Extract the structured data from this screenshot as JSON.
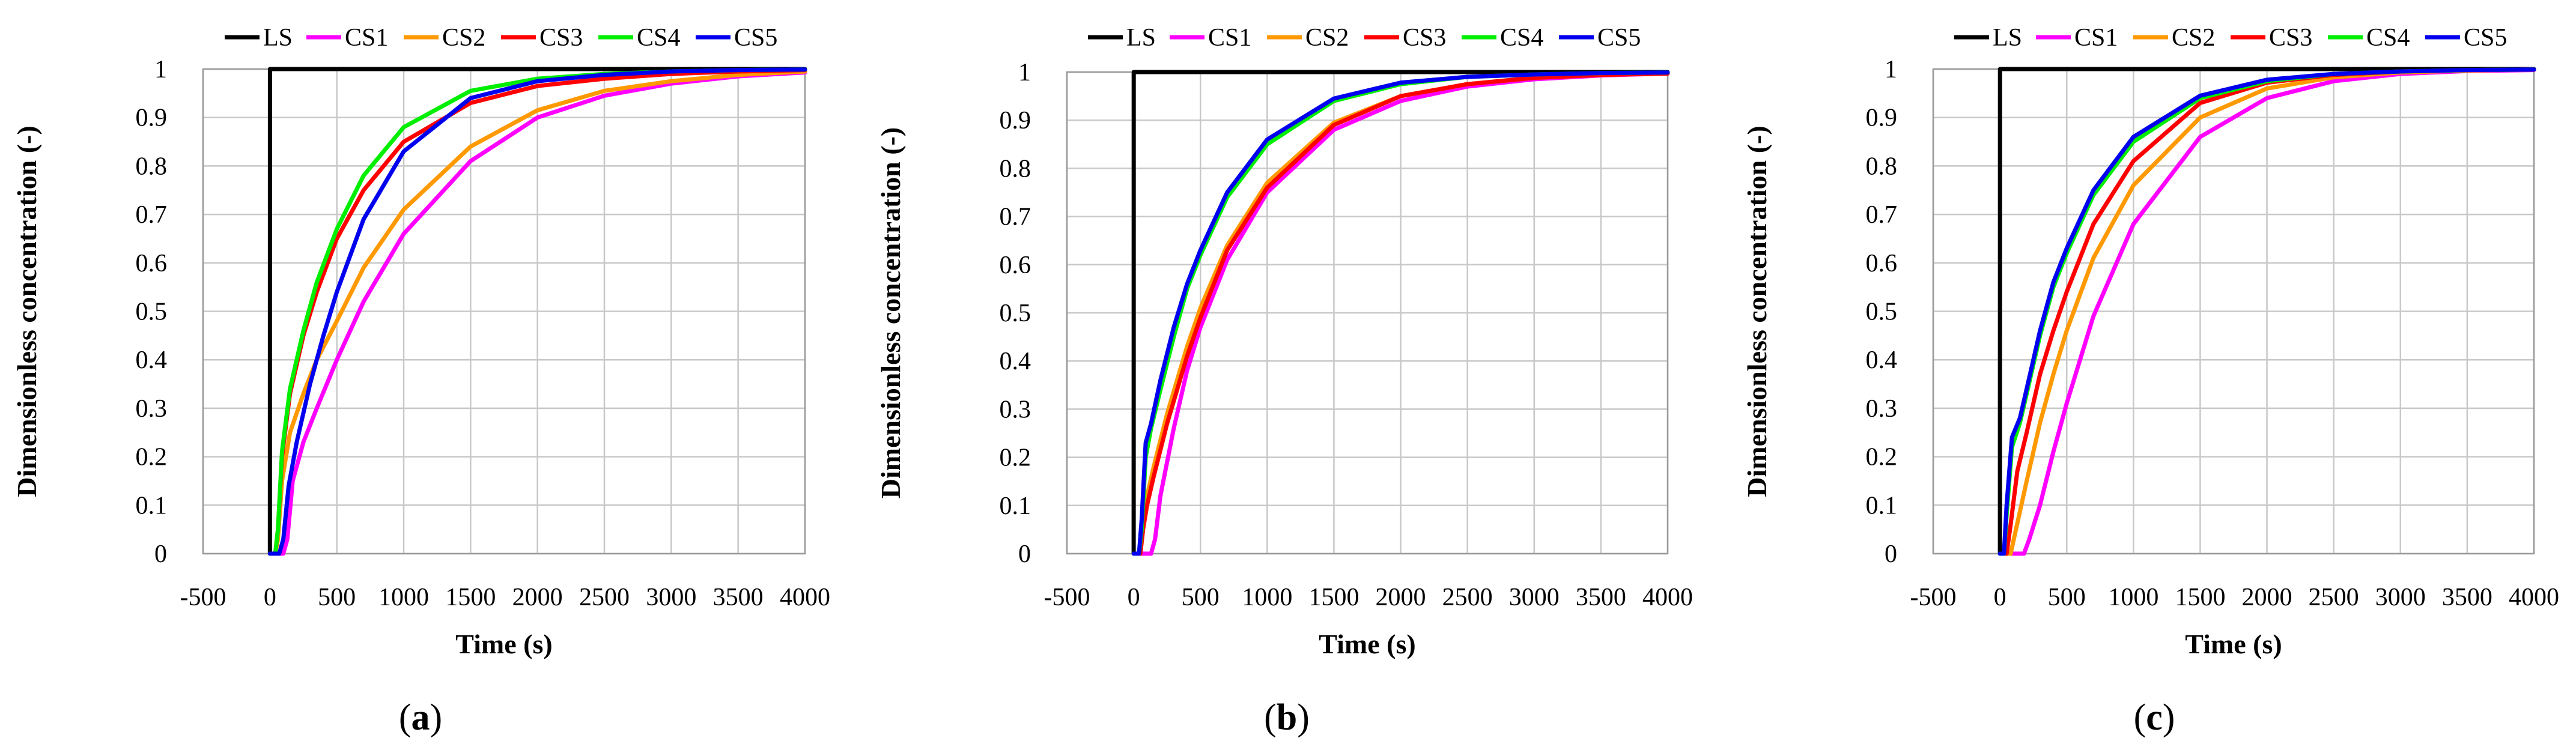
{
  "figure": {
    "captions": [
      {
        "open": "(",
        "letter": "a",
        "close": ")"
      },
      {
        "open": "(",
        "letter": "b",
        "close": ")"
      },
      {
        "open": "(",
        "letter": "c",
        "close": ")"
      }
    ]
  },
  "chart_data": [
    {
      "type": "line",
      "panel": "a",
      "title": "",
      "xlabel": "Time (s)",
      "ylabel": "Dimensionless concentration (-)",
      "xlim": [
        -500,
        4000
      ],
      "ylim": [
        0,
        1
      ],
      "xticks": [
        -500,
        0,
        500,
        1000,
        1500,
        2000,
        2500,
        3000,
        3500,
        4000
      ],
      "yticks": [
        0,
        0.1,
        0.2,
        0.3,
        0.4,
        0.5,
        0.6,
        0.7,
        0.8,
        0.9,
        1
      ],
      "grid": true,
      "legend": "top",
      "series": [
        {
          "name": "LS",
          "color": "#000000",
          "x": [
            0,
            0,
            0.5,
            4000
          ],
          "y": [
            0,
            0,
            1,
            1
          ]
        },
        {
          "name": "CS1",
          "color": "#ff00ff",
          "x": [
            0,
            100,
            130,
            170,
            250,
            350,
            500,
            700,
            1000,
            1500,
            2000,
            2500,
            3000,
            3500,
            4000
          ],
          "y": [
            0,
            0,
            0.03,
            0.15,
            0.23,
            0.3,
            0.4,
            0.52,
            0.66,
            0.81,
            0.9,
            0.945,
            0.97,
            0.985,
            0.993
          ]
        },
        {
          "name": "CS2",
          "color": "#ff9900",
          "x": [
            0,
            40,
            60,
            90,
            150,
            250,
            350,
            500,
            700,
            1000,
            1500,
            2000,
            2500,
            3000,
            3500,
            4000
          ],
          "y": [
            0,
            0,
            0.03,
            0.15,
            0.25,
            0.33,
            0.4,
            0.48,
            0.59,
            0.71,
            0.84,
            0.915,
            0.955,
            0.975,
            0.988,
            0.995
          ]
        },
        {
          "name": "CS3",
          "color": "#ff0000",
          "x": [
            0,
            40,
            60,
            90,
            150,
            250,
            350,
            500,
            700,
            1000,
            1500,
            2000,
            2500,
            3000,
            3500,
            4000
          ],
          "y": [
            0,
            0,
            0.05,
            0.2,
            0.33,
            0.45,
            0.54,
            0.65,
            0.75,
            0.85,
            0.93,
            0.965,
            0.98,
            0.99,
            0.995,
            0.998
          ]
        },
        {
          "name": "CS4",
          "color": "#00ee00",
          "x": [
            0,
            40,
            60,
            90,
            150,
            250,
            350,
            500,
            700,
            1000,
            1500,
            2000,
            2500,
            3000,
            3500,
            4000
          ],
          "y": [
            0,
            0,
            0.05,
            0.21,
            0.34,
            0.46,
            0.56,
            0.67,
            0.78,
            0.88,
            0.955,
            0.98,
            0.99,
            0.995,
            0.998,
            0.999
          ]
        },
        {
          "name": "CS5",
          "color": "#0000ee",
          "x": [
            0,
            70,
            100,
            140,
            200,
            300,
            400,
            500,
            700,
            1000,
            1500,
            2000,
            2500,
            3000,
            3500,
            4000
          ],
          "y": [
            0,
            0,
            0.03,
            0.14,
            0.23,
            0.35,
            0.45,
            0.54,
            0.69,
            0.83,
            0.94,
            0.975,
            0.988,
            0.995,
            0.998,
            0.999
          ]
        }
      ]
    },
    {
      "type": "line",
      "panel": "b",
      "title": "",
      "xlabel": "Time (s)",
      "ylabel": "Dimensionless concentration (-)",
      "xlim": [
        -500,
        4000
      ],
      "ylim": [
        0,
        1
      ],
      "xticks": [
        -500,
        0,
        500,
        1000,
        1500,
        2000,
        2500,
        3000,
        3500,
        4000
      ],
      "yticks": [
        0,
        0.1,
        0.2,
        0.3,
        0.4,
        0.5,
        0.6,
        0.7,
        0.8,
        0.9,
        1
      ],
      "grid": true,
      "legend": "top",
      "series": [
        {
          "name": "LS",
          "color": "#000000",
          "x": [
            0,
            0,
            0.5,
            4000
          ],
          "y": [
            0,
            0,
            1,
            1
          ]
        },
        {
          "name": "CS1",
          "color": "#ff00ff",
          "x": [
            0,
            130,
            160,
            200,
            300,
            400,
            500,
            700,
            1000,
            1500,
            2000,
            2500,
            3000,
            3500,
            4000
          ],
          "y": [
            0,
            0,
            0.03,
            0.12,
            0.26,
            0.38,
            0.47,
            0.61,
            0.75,
            0.88,
            0.94,
            0.97,
            0.985,
            0.993,
            0.997
          ]
        },
        {
          "name": "CS2",
          "color": "#ff9900",
          "x": [
            0,
            50,
            70,
            100,
            150,
            250,
            400,
            500,
            700,
            1000,
            1500,
            2000,
            2500,
            3000,
            3500,
            4000
          ],
          "y": [
            0,
            0,
            0.05,
            0.12,
            0.18,
            0.29,
            0.43,
            0.51,
            0.64,
            0.77,
            0.895,
            0.95,
            0.975,
            0.988,
            0.994,
            0.997
          ]
        },
        {
          "name": "CS3",
          "color": "#ff0000",
          "x": [
            0,
            50,
            70,
            100,
            150,
            250,
            400,
            500,
            700,
            1000,
            1500,
            2000,
            2500,
            3000,
            3500,
            4000
          ],
          "y": [
            0,
            0,
            0.05,
            0.1,
            0.16,
            0.27,
            0.41,
            0.49,
            0.63,
            0.76,
            0.89,
            0.95,
            0.975,
            0.988,
            0.994,
            0.997
          ]
        },
        {
          "name": "CS4",
          "color": "#00ee00",
          "x": [
            0,
            40,
            60,
            90,
            130,
            200,
            300,
            400,
            500,
            700,
            1000,
            1500,
            2000,
            2500,
            3000,
            3500,
            4000
          ],
          "y": [
            0,
            0,
            0.05,
            0.2,
            0.26,
            0.34,
            0.45,
            0.55,
            0.62,
            0.74,
            0.85,
            0.94,
            0.975,
            0.99,
            0.995,
            0.998,
            0.999
          ]
        },
        {
          "name": "CS5",
          "color": "#0000ee",
          "x": [
            0,
            40,
            60,
            90,
            130,
            200,
            300,
            400,
            500,
            700,
            1000,
            1500,
            2000,
            2500,
            3000,
            3500,
            4000
          ],
          "y": [
            0,
            0,
            0.07,
            0.23,
            0.27,
            0.36,
            0.47,
            0.56,
            0.63,
            0.75,
            0.86,
            0.945,
            0.978,
            0.99,
            0.995,
            0.998,
            0.999
          ]
        }
      ]
    },
    {
      "type": "line",
      "panel": "c",
      "title": "",
      "xlabel": "Time (s)",
      "ylabel": "Dimensionless concentration (-)",
      "xlim": [
        -500,
        4000
      ],
      "ylim": [
        0,
        1
      ],
      "xticks": [
        -500,
        0,
        500,
        1000,
        1500,
        2000,
        2500,
        3000,
        3500,
        4000
      ],
      "yticks": [
        0,
        0.1,
        0.2,
        0.3,
        0.4,
        0.5,
        0.6,
        0.7,
        0.8,
        0.9,
        1
      ],
      "grid": true,
      "legend": "top",
      "series": [
        {
          "name": "LS",
          "color": "#000000",
          "x": [
            0,
            0,
            0.5,
            4000
          ],
          "y": [
            0,
            0,
            1,
            1
          ]
        },
        {
          "name": "CS1",
          "color": "#ff00ff",
          "x": [
            0,
            180,
            220,
            300,
            400,
            500,
            700,
            1000,
            1500,
            2000,
            2500,
            3000,
            3500,
            4000
          ],
          "y": [
            0,
            0,
            0.03,
            0.1,
            0.21,
            0.31,
            0.49,
            0.68,
            0.86,
            0.94,
            0.975,
            0.99,
            0.996,
            0.998
          ]
        },
        {
          "name": "CS2",
          "color": "#ff9900",
          "x": [
            0,
            80,
            120,
            200,
            300,
            400,
            500,
            700,
            1000,
            1500,
            2000,
            2500,
            3000,
            3500,
            4000
          ],
          "y": [
            0,
            0,
            0.05,
            0.15,
            0.27,
            0.37,
            0.46,
            0.61,
            0.76,
            0.9,
            0.96,
            0.983,
            0.993,
            0.997,
            0.999
          ]
        },
        {
          "name": "CS3",
          "color": "#ff0000",
          "x": [
            0,
            50,
            80,
            130,
            200,
            300,
            400,
            500,
            700,
            1000,
            1500,
            2000,
            2500,
            3000,
            3500,
            4000
          ],
          "y": [
            0,
            0,
            0.06,
            0.17,
            0.25,
            0.37,
            0.46,
            0.54,
            0.68,
            0.81,
            0.93,
            0.972,
            0.988,
            0.995,
            0.998,
            0.999
          ]
        },
        {
          "name": "CS4",
          "color": "#00ee00",
          "x": [
            0,
            30,
            50,
            90,
            150,
            200,
            300,
            400,
            500,
            700,
            1000,
            1500,
            2000,
            2500,
            3000,
            3500,
            4000
          ],
          "y": [
            0,
            0,
            0.08,
            0.22,
            0.27,
            0.33,
            0.45,
            0.55,
            0.62,
            0.74,
            0.85,
            0.94,
            0.975,
            0.99,
            0.995,
            0.998,
            0.999
          ]
        },
        {
          "name": "CS5",
          "color": "#0000ee",
          "x": [
            0,
            30,
            50,
            90,
            150,
            200,
            300,
            400,
            500,
            700,
            1000,
            1500,
            2000,
            2500,
            3000,
            3500,
            4000
          ],
          "y": [
            0,
            0,
            0.1,
            0.24,
            0.28,
            0.34,
            0.46,
            0.56,
            0.63,
            0.75,
            0.86,
            0.945,
            0.978,
            0.99,
            0.995,
            0.998,
            0.999
          ]
        }
      ]
    }
  ]
}
